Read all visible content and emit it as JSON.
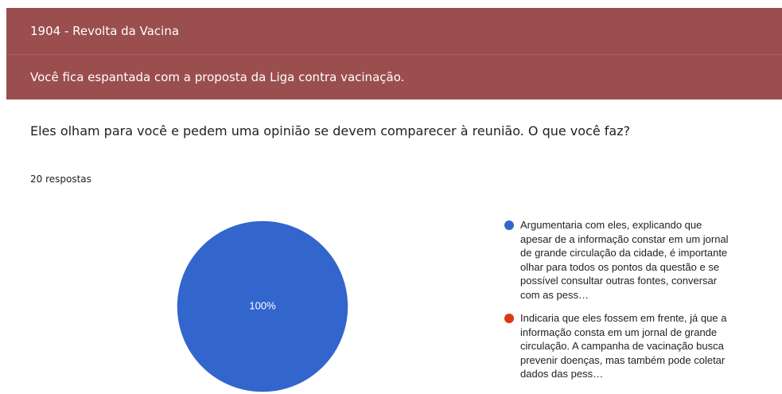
{
  "header": {
    "title": "1904 - Revolta da Vacina",
    "description": "Você fica espantada com a proposta da Liga contra vacinação."
  },
  "question": "Eles olham para você e pedem uma opinião se devem comparecer à reunião. O que você faz?",
  "responses": "20 respostas",
  "chart_data": {
    "type": "pie",
    "categories": [
      "Argumentaria com eles, explicando que apesar de a informação constar em um jornal de grande circulação da cidade, é importante olhar para todos os pontos da questão e se possível consultar outras fontes, conversar com as pess…",
      "Indicaria que eles fossem em frente, já que a informação consta em um jornal de grande circulação. A campanha de vacinação busca prevenir doenças, mas também pode coletar dados das pess…"
    ],
    "values": [
      100,
      0
    ],
    "value_labels": [
      "100%",
      null
    ],
    "colors": [
      "#3366cc",
      "#dc3912"
    ]
  }
}
